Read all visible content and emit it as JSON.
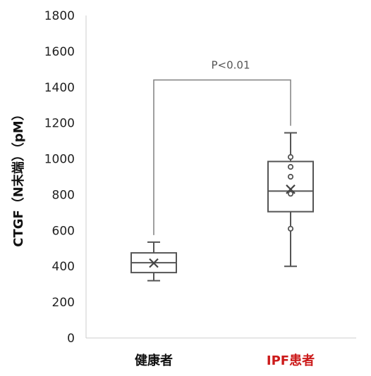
{
  "chart_data": {
    "type": "box",
    "ylabel": "CTGF（N末端）（pM）",
    "ylim": [
      0,
      1800
    ],
    "yticks": [
      0,
      200,
      400,
      600,
      800,
      1000,
      1200,
      1400,
      1600,
      1800
    ],
    "grid": false,
    "categories": [
      {
        "label": "健康者",
        "color": "#111111",
        "min": 320,
        "q1": 365,
        "median": 420,
        "q3": 475,
        "max": 535,
        "mean": 418,
        "outliers": []
      },
      {
        "label": "IPF患者",
        "color": "#cc1a1a",
        "min": 400,
        "q1": 705,
        "median": 820,
        "q3": 985,
        "max": 1145,
        "mean": 830,
        "outliers": [
          1010,
          955,
          900,
          805,
          610
        ]
      }
    ],
    "annotation": {
      "text": "P<0.01",
      "between": [
        0,
        1
      ],
      "level": 1440
    }
  }
}
